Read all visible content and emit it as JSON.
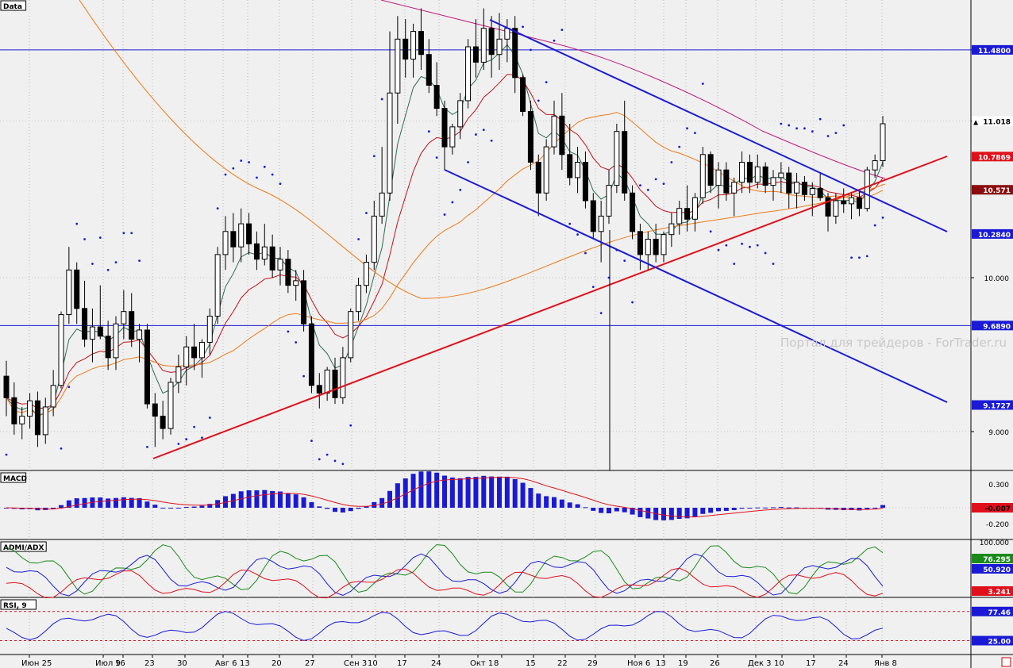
{
  "chart_data": {
    "type": "candlestick",
    "panels": {
      "price": {
        "label": "Data",
        "ylim": [
          8.77,
          11.82
        ],
        "ticks": [
          "11.480",
          "11.018",
          "10.000",
          "9.000"
        ],
        "tick_values": [
          11.48,
          11.018,
          10.0,
          9.0
        ],
        "badges": [
          {
            "value": 11.48,
            "label": "11.4800",
            "color": "#1a1ad6",
            "text_color": "#ffffff"
          },
          {
            "value": 11.018,
            "label": "11.018",
            "color": "#ffffff",
            "text_color": "#000000",
            "marker": "▲"
          },
          {
            "value": 10.7869,
            "label": "10.7869",
            "color": "#e0101b",
            "text_color": "#ffffff"
          },
          {
            "value": 10.571,
            "label": "10.571",
            "color": "#8b0c0c",
            "text_color": "#ffffff"
          },
          {
            "value": 10.284,
            "label": "10.2840",
            "color": "#1a1ad6",
            "text_color": "#ffffff"
          },
          {
            "value": 9.689,
            "label": "9.6890",
            "color": "#1a1ad6",
            "text_color": "#ffffff"
          },
          {
            "value": 9.1727,
            "label": "9.1727",
            "color": "#1a1ad6",
            "text_color": "#ffffff"
          }
        ],
        "horizontal_lines": [
          11.48,
          9.689
        ],
        "watermark": "Портал для трейдеров - ForTrader.ru"
      },
      "macd": {
        "label": "MACD",
        "ticks": [
          "0.300",
          "-0.200"
        ],
        "tick_values": [
          0.3,
          -0.2
        ],
        "current": "-0.007",
        "ylim": [
          -0.4,
          0.45
        ]
      },
      "adx": {
        "label": "ADMI/ADX",
        "ticks": [
          "100.000"
        ],
        "current_values": [
          {
            "label": "76.295",
            "color": "#1a8a1a"
          },
          {
            "label": "50.920",
            "color": "#1a1ad6"
          },
          {
            "label": "3.241",
            "color": "#e0101b"
          }
        ]
      },
      "rsi": {
        "label": "RSI, 9",
        "levels": [
          {
            "label": "77.46",
            "color": "#1a1ad6"
          },
          {
            "label": "25.00",
            "color": "#1a1ad6"
          }
        ]
      }
    },
    "x_labels": [
      "Июн 25",
      "Июл 9",
      "16",
      "23",
      "30",
      "Авг 6",
      "13",
      "20",
      "27",
      "Сен 3",
      "10",
      "17",
      "24",
      "Окт 1",
      "8",
      "15",
      "22",
      "29",
      "Ноя 6",
      "13",
      "19",
      "26",
      "Дек 3",
      "10",
      "17",
      "24",
      "Янв 8"
    ],
    "candles": [
      [
        9.36,
        9.46,
        9.1,
        9.22
      ],
      [
        9.22,
        9.32,
        8.98,
        9.05
      ],
      [
        9.05,
        9.16,
        8.95,
        9.1
      ],
      [
        9.1,
        9.25,
        9.02,
        9.2
      ],
      [
        9.2,
        9.26,
        8.9,
        8.98
      ],
      [
        8.98,
        9.22,
        8.92,
        9.16
      ],
      [
        9.16,
        9.4,
        9.1,
        9.3
      ],
      [
        9.3,
        9.78,
        9.28,
        9.76
      ],
      [
        9.76,
        10.2,
        9.7,
        10.05
      ],
      [
        10.05,
        10.1,
        9.7,
        9.8
      ],
      [
        9.8,
        9.98,
        9.55,
        9.6
      ],
      [
        9.6,
        9.8,
        9.45,
        9.68
      ],
      [
        9.68,
        9.95,
        9.6,
        9.62
      ],
      [
        9.62,
        9.72,
        9.4,
        9.48
      ],
      [
        9.48,
        9.75,
        9.4,
        9.7
      ],
      [
        9.7,
        9.92,
        9.6,
        9.78
      ],
      [
        9.78,
        9.9,
        9.55,
        9.6
      ],
      [
        9.6,
        9.7,
        9.45,
        9.66
      ],
      [
        9.66,
        9.7,
        9.15,
        9.18
      ],
      [
        9.18,
        9.25,
        8.9,
        9.1
      ],
      [
        9.1,
        9.2,
        8.95,
        9.02
      ],
      [
        9.02,
        9.35,
        8.98,
        9.32
      ],
      [
        9.32,
        9.5,
        9.25,
        9.42
      ],
      [
        9.42,
        9.62,
        9.3,
        9.55
      ],
      [
        9.55,
        9.7,
        9.4,
        9.48
      ],
      [
        9.48,
        9.6,
        9.35,
        9.58
      ],
      [
        9.58,
        9.8,
        9.5,
        9.75
      ],
      [
        9.75,
        10.2,
        9.7,
        10.15
      ],
      [
        10.15,
        10.4,
        10.05,
        10.3
      ],
      [
        10.3,
        10.42,
        10.1,
        10.2
      ],
      [
        10.2,
        10.45,
        10.1,
        10.35
      ],
      [
        10.35,
        10.42,
        10.15,
        10.22
      ],
      [
        10.22,
        10.3,
        10.05,
        10.12
      ],
      [
        10.12,
        10.35,
        10.08,
        10.2
      ],
      [
        10.2,
        10.28,
        10.0,
        10.05
      ],
      [
        10.05,
        10.2,
        9.95,
        10.12
      ],
      [
        10.12,
        10.18,
        9.9,
        9.95
      ],
      [
        9.95,
        10.05,
        9.85,
        9.98
      ],
      [
        9.98,
        10.05,
        9.65,
        9.7
      ],
      [
        9.7,
        9.75,
        9.25,
        9.3
      ],
      [
        9.3,
        9.38,
        9.15,
        9.25
      ],
      [
        9.25,
        9.42,
        9.2,
        9.4
      ],
      [
        9.4,
        9.48,
        9.18,
        9.22
      ],
      [
        9.22,
        9.55,
        9.18,
        9.48
      ],
      [
        9.48,
        9.8,
        9.45,
        9.78
      ],
      [
        9.78,
        10.0,
        9.72,
        9.95
      ],
      [
        9.95,
        10.15,
        9.9,
        10.1
      ],
      [
        10.1,
        10.5,
        10.05,
        10.4
      ],
      [
        10.4,
        10.85,
        10.35,
        10.55
      ],
      [
        10.55,
        11.6,
        10.5,
        11.2
      ],
      [
        11.2,
        11.7,
        11.0,
        11.55
      ],
      [
        11.55,
        11.68,
        11.3,
        11.42
      ],
      [
        11.42,
        11.65,
        11.3,
        11.6
      ],
      [
        11.6,
        11.75,
        11.35,
        11.45
      ],
      [
        11.45,
        11.55,
        11.2,
        11.25
      ],
      [
        11.25,
        11.4,
        11.05,
        11.1
      ],
      [
        11.1,
        11.15,
        10.7,
        10.85
      ],
      [
        10.85,
        11.0,
        10.8,
        10.98
      ],
      [
        10.98,
        11.2,
        10.9,
        11.15
      ],
      [
        11.15,
        11.55,
        11.1,
        11.5
      ],
      [
        11.5,
        11.68,
        11.3,
        11.4
      ],
      [
        11.4,
        11.75,
        11.35,
        11.62
      ],
      [
        11.62,
        11.7,
        11.3,
        11.45
      ],
      [
        11.45,
        11.72,
        11.35,
        11.55
      ],
      [
        11.55,
        11.68,
        11.4,
        11.62
      ],
      [
        11.62,
        11.7,
        11.2,
        11.3
      ],
      [
        11.3,
        11.32,
        11.05,
        11.08
      ],
      [
        11.08,
        11.15,
        10.7,
        10.75
      ],
      [
        10.75,
        10.8,
        10.4,
        10.55
      ],
      [
        10.55,
        10.9,
        10.5,
        10.85
      ],
      [
        10.85,
        11.15,
        10.8,
        11.05
      ],
      [
        11.05,
        11.2,
        10.7,
        10.8
      ],
      [
        10.8,
        11.0,
        10.6,
        10.65
      ],
      [
        10.65,
        10.85,
        10.55,
        10.75
      ],
      [
        10.75,
        10.82,
        10.45,
        10.5
      ],
      [
        10.5,
        10.55,
        10.25,
        10.3
      ],
      [
        10.3,
        10.5,
        10.1,
        10.4
      ],
      [
        10.4,
        10.7,
        10.35,
        10.6
      ],
      [
        10.6,
        11.0,
        10.55,
        10.95
      ],
      [
        10.95,
        11.15,
        10.5,
        10.55
      ],
      [
        10.55,
        10.6,
        10.25,
        10.3
      ],
      [
        10.3,
        10.35,
        10.05,
        10.15
      ],
      [
        10.15,
        10.3,
        10.05,
        10.25
      ],
      [
        10.25,
        10.35,
        10.1,
        10.15
      ],
      [
        10.15,
        10.3,
        10.1,
        10.28
      ],
      [
        10.28,
        10.42,
        10.2,
        10.35
      ],
      [
        10.35,
        10.5,
        10.28,
        10.45
      ],
      [
        10.45,
        10.6,
        10.3,
        10.38
      ],
      [
        10.38,
        10.55,
        10.3,
        10.52
      ],
      [
        10.52,
        10.85,
        10.48,
        10.8
      ],
      [
        10.8,
        10.82,
        10.55,
        10.6
      ],
      [
        10.6,
        10.75,
        10.45,
        10.7
      ],
      [
        10.7,
        10.75,
        10.5,
        10.55
      ],
      [
        10.55,
        10.65,
        10.4,
        10.62
      ],
      [
        10.62,
        10.82,
        10.55,
        10.75
      ],
      [
        10.75,
        10.8,
        10.55,
        10.62
      ],
      [
        10.62,
        10.8,
        10.58,
        10.72
      ],
      [
        10.72,
        10.75,
        10.55,
        10.6
      ],
      [
        10.6,
        10.7,
        10.5,
        10.65
      ],
      [
        10.65,
        10.75,
        10.55,
        10.68
      ],
      [
        10.68,
        10.72,
        10.45,
        10.55
      ],
      [
        10.55,
        10.68,
        10.45,
        10.62
      ],
      [
        10.62,
        10.66,
        10.5,
        10.54
      ],
      [
        10.54,
        10.62,
        10.4,
        10.58
      ],
      [
        10.58,
        10.68,
        10.5,
        10.52
      ],
      [
        10.52,
        10.55,
        10.3,
        10.4
      ],
      [
        10.4,
        10.55,
        10.35,
        10.5
      ],
      [
        10.5,
        10.58,
        10.42,
        10.48
      ],
      [
        10.48,
        10.55,
        10.38,
        10.52
      ],
      [
        10.52,
        10.56,
        10.4,
        10.45
      ],
      [
        10.45,
        10.72,
        10.43,
        10.7
      ],
      [
        10.7,
        10.8,
        10.65,
        10.76
      ],
      [
        10.76,
        11.05,
        10.72,
        11.0
      ]
    ]
  }
}
